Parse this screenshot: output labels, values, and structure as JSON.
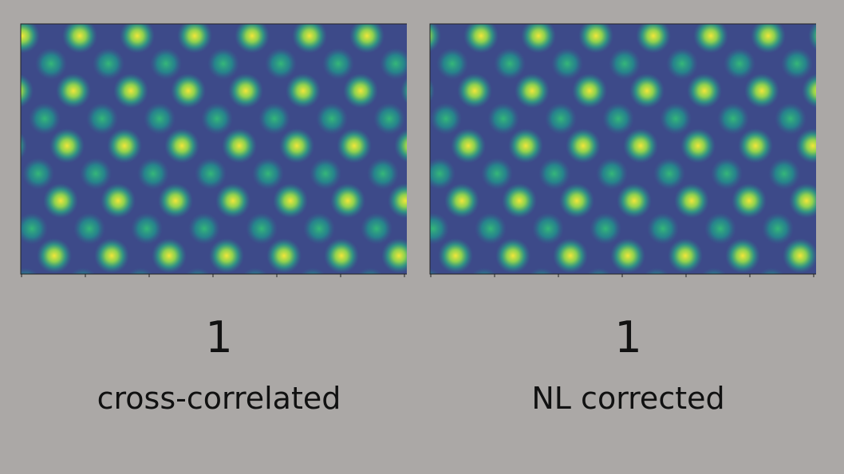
{
  "panels": [
    {
      "number": "1",
      "caption": "cross-correlated"
    },
    {
      "number": "1",
      "caption": "NL corrected"
    }
  ]
}
